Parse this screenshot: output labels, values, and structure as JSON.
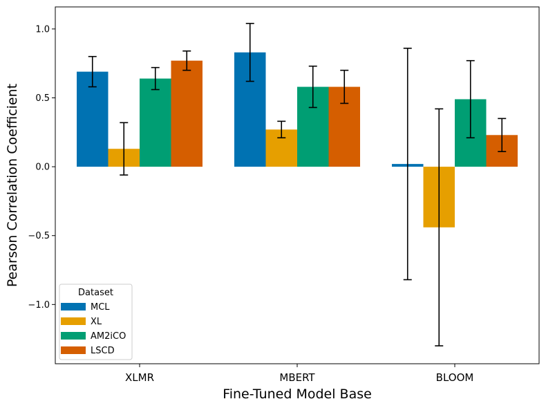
{
  "chart_data": {
    "type": "bar",
    "title": "",
    "xlabel": "Fine-Tuned Model Base",
    "ylabel": "Pearson Correlation Coefficient",
    "ylim": [
      -1.43,
      1.16
    ],
    "yticks": [
      -1.0,
      -0.5,
      0.0,
      0.5,
      1.0
    ],
    "ytick_labels": [
      "−1.0",
      "−0.5",
      "0.0",
      "0.5",
      "1.0"
    ],
    "categories": [
      "XLMR",
      "MBERT",
      "BLOOM"
    ],
    "legend_title": "Dataset",
    "legend_position": "lower-left",
    "grid": false,
    "series": [
      {
        "name": "MCL",
        "color": "#0072b2",
        "values": [
          0.69,
          0.83,
          0.02
        ],
        "errors": [
          0.11,
          0.21,
          0.84
        ]
      },
      {
        "name": "XL",
        "color": "#e69f00",
        "values": [
          0.13,
          0.27,
          -0.44
        ],
        "errors": [
          0.19,
          0.06,
          0.86
        ]
      },
      {
        "name": "AM2iCO",
        "color": "#009e73",
        "values": [
          0.64,
          0.58,
          0.49
        ],
        "errors": [
          0.08,
          0.15,
          0.28
        ]
      },
      {
        "name": "LSCD",
        "color": "#d55e00",
        "values": [
          0.77,
          0.58,
          0.23
        ],
        "errors": [
          0.07,
          0.12,
          0.12
        ]
      }
    ]
  }
}
